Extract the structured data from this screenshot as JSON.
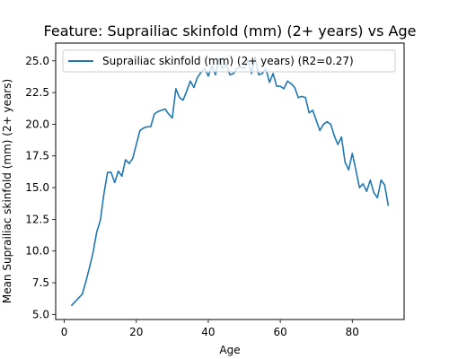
{
  "chart_data": {
    "type": "line",
    "title": "Feature: Suprailiac skinfold (mm) (2+ years) vs Age",
    "xlabel": "Age",
    "ylabel": "Mean Suprailiac skinfold (mm) (2+ years)",
    "xlim": [
      -2.4,
      94.4
    ],
    "ylim": [
      4.6,
      26.4
    ],
    "xticks": [
      0,
      20,
      40,
      60,
      80
    ],
    "yticks": [
      5.0,
      7.5,
      10.0,
      12.5,
      15.0,
      17.5,
      20.0,
      22.5,
      25.0
    ],
    "ytick_labels": [
      "5.0",
      "7.5",
      "10.0",
      "12.5",
      "15.0",
      "17.5",
      "20.0",
      "22.5",
      "25.0"
    ],
    "grid": false,
    "legend_position": "upper-left",
    "series": [
      {
        "name": "Suprailiac skinfold (mm) (2+ years) (R2=0.27)",
        "color": "#1f77b4",
        "x": [
          2,
          3,
          4,
          5,
          6,
          7,
          8,
          9,
          10,
          11,
          12,
          13,
          14,
          15,
          16,
          17,
          18,
          19,
          20,
          21,
          22,
          23,
          24,
          25,
          26,
          27,
          28,
          29,
          30,
          31,
          32,
          33,
          34,
          35,
          36,
          37,
          38,
          39,
          40,
          41,
          42,
          43,
          44,
          45,
          46,
          47,
          48,
          49,
          50,
          51,
          52,
          53,
          54,
          55,
          56,
          57,
          58,
          59,
          60,
          61,
          62,
          63,
          64,
          65,
          66,
          67,
          68,
          69,
          70,
          71,
          72,
          73,
          74,
          75,
          76,
          77,
          78,
          79,
          80,
          81,
          82,
          83,
          84,
          85,
          86,
          87,
          88,
          89,
          90
        ],
        "y": [
          5.7,
          6.0,
          6.3,
          6.6,
          7.6,
          8.7,
          9.9,
          11.5,
          12.4,
          14.5,
          16.2,
          16.2,
          15.4,
          16.3,
          15.9,
          17.2,
          16.9,
          17.3,
          18.4,
          19.5,
          19.7,
          19.8,
          19.8,
          20.8,
          21.0,
          21.1,
          21.2,
          20.8,
          20.5,
          22.8,
          22.1,
          21.9,
          22.6,
          23.4,
          22.9,
          23.7,
          24.1,
          24.4,
          23.8,
          24.6,
          23.9,
          25.2,
          24.4,
          24.7,
          23.9,
          24.0,
          24.4,
          24.5,
          24.4,
          25.1,
          24.0,
          25.3,
          23.9,
          24.0,
          24.4,
          23.3,
          24.0,
          23.0,
          23.0,
          22.8,
          23.4,
          23.2,
          22.9,
          22.1,
          22.2,
          22.1,
          20.9,
          21.1,
          20.3,
          19.5,
          20.0,
          20.2,
          20.0,
          19.1,
          18.4,
          19.0,
          17.0,
          16.4,
          17.7,
          16.4,
          15.0,
          15.3,
          14.7,
          15.6,
          14.6,
          14.2,
          15.6,
          15.2,
          13.6
        ]
      }
    ]
  }
}
